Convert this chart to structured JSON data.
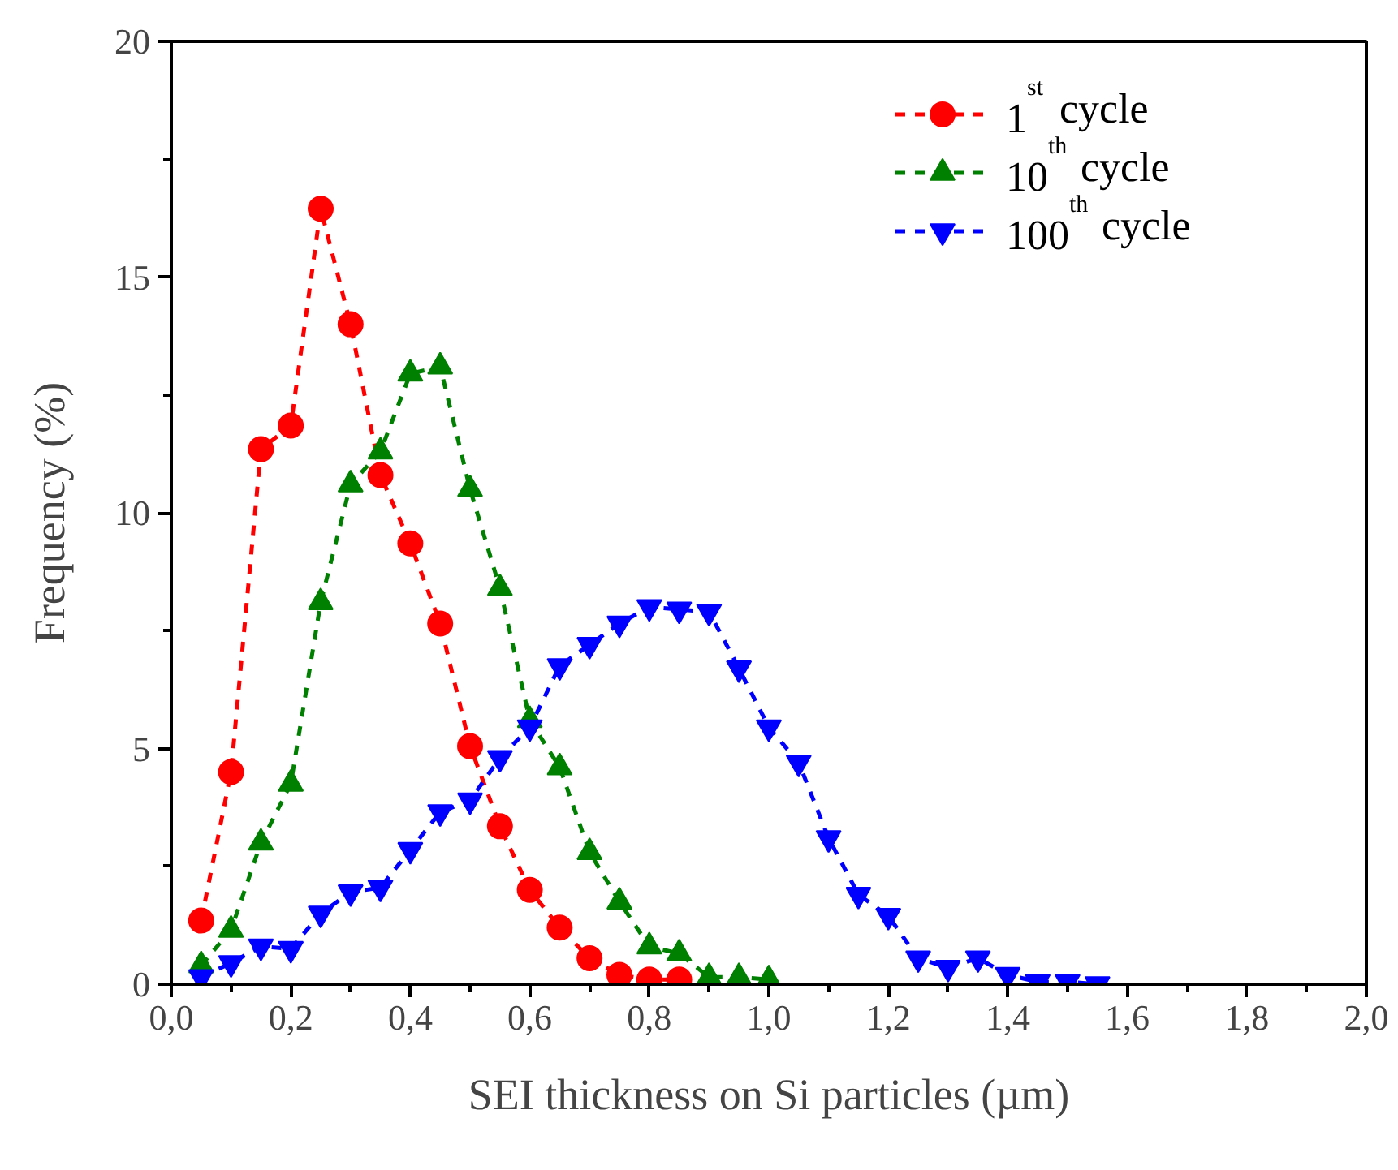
{
  "chart_data": {
    "type": "line",
    "xlabel": "SEI thickness on Si particles (µm)",
    "ylabel": "Frequency (%)",
    "xlim": [
      0,
      2.0
    ],
    "ylim": [
      0,
      20
    ],
    "xticks": [
      {
        "value": 0,
        "label": "0,0"
      },
      {
        "value": 0.2,
        "label": "0,2"
      },
      {
        "value": 0.4,
        "label": "0,4"
      },
      {
        "value": 0.6,
        "label": "0,6"
      },
      {
        "value": 0.8,
        "label": "0,8"
      },
      {
        "value": 1.0,
        "label": "1,0"
      },
      {
        "value": 1.2,
        "label": "1,2"
      },
      {
        "value": 1.4,
        "label": "1,4"
      },
      {
        "value": 1.6,
        "label": "1,6"
      },
      {
        "value": 1.8,
        "label": "1,8"
      },
      {
        "value": 2.0,
        "label": "2,0"
      }
    ],
    "yticks": [
      0,
      5,
      10,
      15,
      20
    ],
    "grid": false,
    "legend": "top right",
    "line_style": "dashed",
    "series": [
      {
        "name": "1$^{st}$ cycle",
        "color": "#ff0000",
        "marker": "circle",
        "x": [
          0.05,
          0.1,
          0.15,
          0.2,
          0.25,
          0.3,
          0.35,
          0.4,
          0.45,
          0.5,
          0.55,
          0.6,
          0.65,
          0.7,
          0.75,
          0.8,
          0.85
        ],
        "values": [
          1.35,
          4.5,
          11.35,
          11.85,
          16.45,
          14.0,
          10.8,
          9.35,
          7.65,
          5.05,
          3.35,
          2.0,
          1.2,
          0.55,
          0.2,
          0.1,
          0.1
        ]
      },
      {
        "name": "10$^{th}$ cycle",
        "color": "#008000",
        "marker": "triangle",
        "x": [
          0.05,
          0.1,
          0.15,
          0.2,
          0.25,
          0.3,
          0.35,
          0.4,
          0.45,
          0.5,
          0.55,
          0.6,
          0.65,
          0.7,
          0.75,
          0.8,
          0.85,
          0.9,
          0.95,
          1.0
        ],
        "values": [
          0.4,
          1.15,
          3.0,
          4.25,
          8.1,
          10.6,
          11.3,
          12.95,
          13.1,
          10.5,
          8.4,
          5.6,
          4.6,
          2.8,
          1.75,
          0.8,
          0.65,
          0.15,
          0.15,
          0.1
        ]
      },
      {
        "name": "100$^{th}$ cycle",
        "color": "#0000ff",
        "marker": "triangle",
        "x": [
          0.05,
          0.1,
          0.15,
          0.2,
          0.25,
          0.3,
          0.35,
          0.4,
          0.45,
          0.5,
          0.55,
          0.6,
          0.65,
          0.7,
          0.75,
          0.8,
          0.85,
          0.9,
          0.95,
          1.0,
          1.05,
          1.1,
          1.15,
          1.2,
          1.25,
          1.3,
          1.35,
          1.4,
          1.45,
          1.5,
          1.55
        ],
        "values": [
          0.15,
          0.45,
          0.8,
          0.75,
          1.5,
          1.95,
          2.05,
          2.85,
          3.65,
          3.9,
          4.8,
          5.45,
          6.75,
          7.2,
          7.65,
          8.0,
          7.95,
          7.9,
          6.7,
          5.45,
          4.7,
          3.1,
          1.9,
          1.45,
          0.55,
          0.35,
          0.55,
          0.2,
          0.05,
          0.05,
          0.0
        ]
      }
    ]
  }
}
